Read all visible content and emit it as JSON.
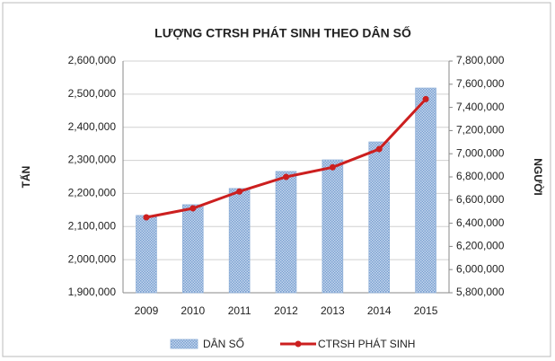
{
  "chart_data": {
    "type": "bar-line",
    "title": "LƯỢNG CTRSH PHÁT SINH THEO DÂN SỐ",
    "ylabel": "TẤN",
    "y2label": "NGƯỜI",
    "categories": [
      "2009",
      "2010",
      "2011",
      "2012",
      "2013",
      "2014",
      "2015"
    ],
    "series": [
      {
        "name": "DÂN SỐ",
        "type": "bar",
        "axis": "y2",
        "color": "#8fb0d8",
        "values": [
          6467000,
          6560000,
          6700000,
          6847000,
          6947000,
          7102000,
          7567000
        ]
      },
      {
        "name": "CTRSH PHÁT SINH",
        "type": "line",
        "axis": "y",
        "color": "#cc1f1f",
        "values": [
          2128000,
          2155000,
          2206000,
          2250000,
          2279000,
          2334000,
          2485000
        ]
      }
    ],
    "ylim": [
      1900000,
      2600000
    ],
    "yticks": [
      {
        "value": 1900000,
        "label": "1,900,000"
      },
      {
        "value": 2000000,
        "label": "2,000,000"
      },
      {
        "value": 2100000,
        "label": "2,100,000"
      },
      {
        "value": 2200000,
        "label": "2,200,000"
      },
      {
        "value": 2300000,
        "label": "2,300,000"
      },
      {
        "value": 2400000,
        "label": "2,400,000"
      },
      {
        "value": 2500000,
        "label": "2,500,000"
      },
      {
        "value": 2600000,
        "label": "2,600,000"
      }
    ],
    "y2lim": [
      5800000,
      7800000
    ],
    "y2ticks": [
      {
        "value": 5800000,
        "label": "5,800,000"
      },
      {
        "value": 6000000,
        "label": "6,000,000"
      },
      {
        "value": 6200000,
        "label": "6,200,000"
      },
      {
        "value": 6400000,
        "label": "6,400,000"
      },
      {
        "value": 6600000,
        "label": "6,600,000"
      },
      {
        "value": 6800000,
        "label": "6,800,000"
      },
      {
        "value": 7000000,
        "label": "7,000,000"
      },
      {
        "value": 7200000,
        "label": "7,200,000"
      },
      {
        "value": 7400000,
        "label": "7,400,000"
      },
      {
        "value": 7600000,
        "label": "7,600,000"
      },
      {
        "value": 7800000,
        "label": "7,800,000"
      }
    ],
    "legend": "bottom"
  }
}
